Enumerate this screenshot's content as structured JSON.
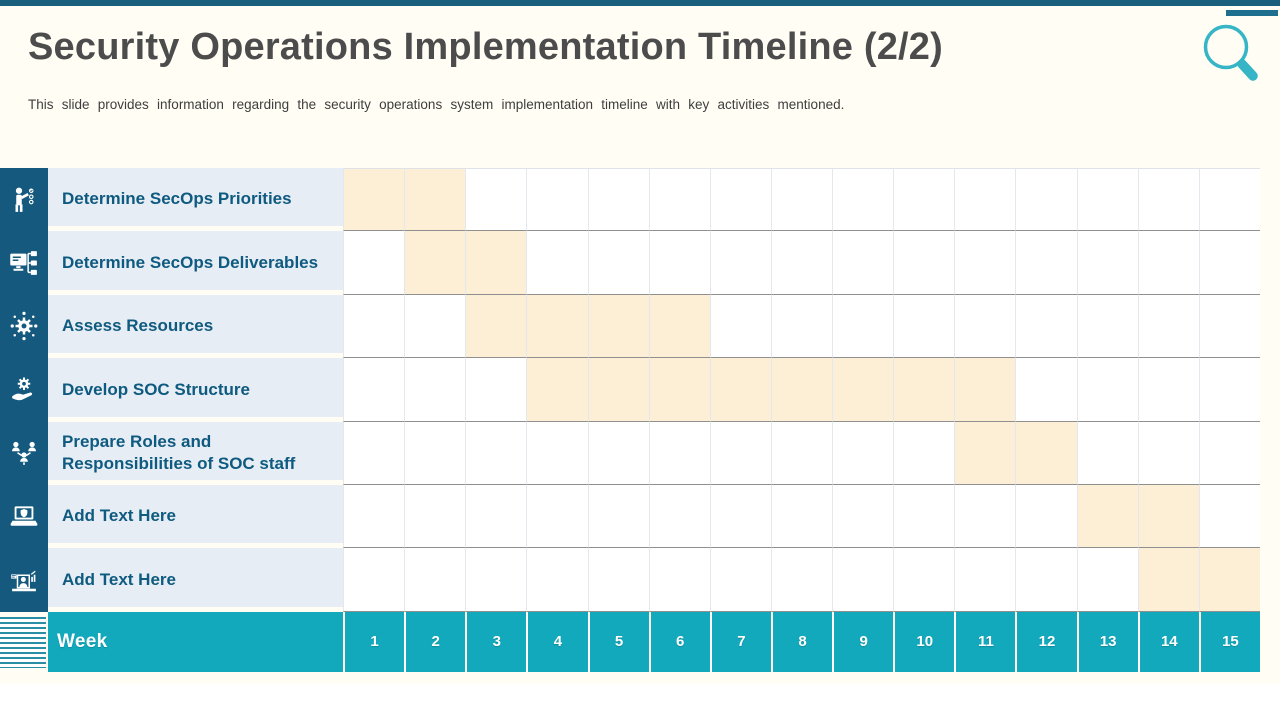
{
  "slide": {
    "title": "Security Operations Implementation Timeline (2/2)",
    "subtitle": "This slide provides  information  regarding  the security operations  system implementation  timeline  with key activities  mentioned."
  },
  "decor": {
    "magnifier_icon": "magnifier-icon",
    "stripes_decoration": "stripes-decoration"
  },
  "gantt": {
    "week_label": "Week",
    "weeks": [
      1,
      2,
      3,
      4,
      5,
      6,
      7,
      8,
      9,
      10,
      11,
      12,
      13,
      14,
      15
    ],
    "num_weeks": 15,
    "rows": [
      {
        "label": "Determine SecOps Priorities",
        "icon": "presenter-checklist-icon",
        "start_week": 1,
        "end_week": 2
      },
      {
        "label": "Determine SecOps Deliverables",
        "icon": "monitor-flowchart-icon",
        "start_week": 2,
        "end_week": 3
      },
      {
        "label": "Assess Resources",
        "icon": "gear-process-icon",
        "start_week": 3,
        "end_week": 6
      },
      {
        "label": "Develop SOC Structure",
        "icon": "hand-gear-icon",
        "start_week": 4,
        "end_week": 11
      },
      {
        "label": "Prepare Roles and Responsibilities of SOC staff",
        "icon": "team-network-icon",
        "start_week": 11,
        "end_week": 12
      },
      {
        "label": "Add Text Here",
        "icon": "laptop-shield-icon",
        "start_week": 13,
        "end_week": 14
      },
      {
        "label": "Add Text Here",
        "icon": "analyst-workstation-icon",
        "start_week": 14,
        "end_week": 15
      }
    ]
  },
  "chart_data": {
    "type": "gantt",
    "title": "Security Operations Implementation Timeline (2/2)",
    "x_axis_label": "Week",
    "x_ticks": [
      1,
      2,
      3,
      4,
      5,
      6,
      7,
      8,
      9,
      10,
      11,
      12,
      13,
      14,
      15
    ],
    "x_range": [
      1,
      15
    ],
    "grid": true,
    "bar_color": "#fcefd5",
    "tasks": [
      {
        "name": "Determine SecOps Priorities",
        "start_week": 1,
        "end_week": 2
      },
      {
        "name": "Determine SecOps Deliverables",
        "start_week": 2,
        "end_week": 3
      },
      {
        "name": "Assess Resources",
        "start_week": 3,
        "end_week": 6
      },
      {
        "name": "Develop SOC Structure",
        "start_week": 4,
        "end_week": 11
      },
      {
        "name": "Prepare Roles and Responsibilities of SOC staff",
        "start_week": 11,
        "end_week": 12
      },
      {
        "name": "Add Text Here",
        "start_week": 13,
        "end_week": 14
      },
      {
        "name": "Add Text Here",
        "start_week": 14,
        "end_week": 15
      }
    ]
  },
  "colors": {
    "top_bar": "#1b5f7e",
    "accent_bar": "#1e6f8e",
    "icon_column": "#155a7e",
    "task_label_bg": "#e7edf4",
    "task_label_text": "#0e5a80",
    "week_row_bg": "#12a9bd",
    "highlight_cell": "#fcefd5",
    "magnifier": "#35b5c5",
    "title_text": "#4c4c4c",
    "subtitle_text": "#3e3e3e",
    "cream_background": "#fffdf4",
    "row_divider": "#8f8f8f"
  }
}
